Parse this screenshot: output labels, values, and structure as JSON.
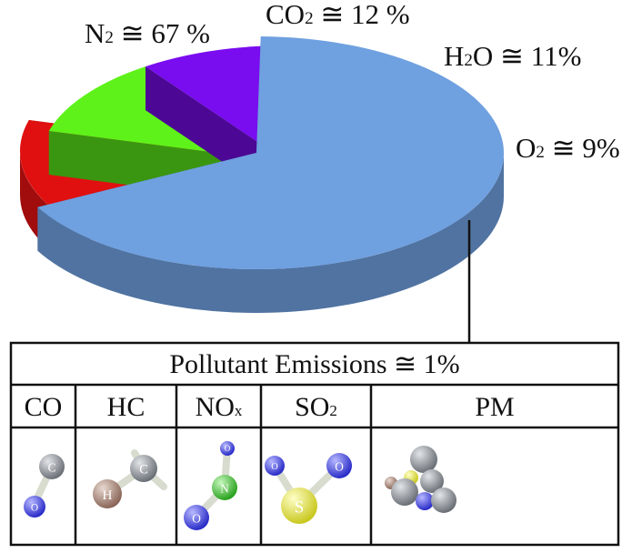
{
  "chart_data": {
    "type": "pie",
    "title": "",
    "slices": [
      {
        "base": "N",
        "sub": "2",
        "rest": " ≅ 67 %",
        "value": 67,
        "color": "#6fa0e0"
      },
      {
        "base": "CO",
        "sub": "2",
        "rest": " ≅ 12 %",
        "value": 12,
        "color": "#e01010"
      },
      {
        "base": "H",
        "sub": "2",
        "rest": "O ≅ 11%",
        "value": 11,
        "color": "#5ef21a"
      },
      {
        "base": "O",
        "sub": "2",
        "rest": " ≅ 9%",
        "value": 9,
        "color": "#7a0cf0"
      },
      {
        "base": "",
        "sub": "",
        "rest": "",
        "value": 1,
        "color": "#dcdc14"
      }
    ],
    "exploded": [
      "CO2 ≅ 12 %",
      "H2O ≅ 11%",
      "O2 ≅ 9%",
      "Pollutant Emissions ≅ 1%"
    ],
    "legend": "none"
  },
  "table": {
    "title": "Pollutant Emissions ≅ 1%",
    "columns": [
      {
        "base": "CO",
        "sub": "",
        "icon": "carbon-monoxide-molecule-icon",
        "atoms": [
          "C",
          "O"
        ]
      },
      {
        "base": "HC",
        "sub": "",
        "icon": "hydrocarbon-molecule-icon",
        "atoms": [
          "H",
          "C"
        ]
      },
      {
        "base": "NO",
        "sub": "x",
        "icon": "nitrogen-oxide-molecule-icon",
        "atoms": [
          "O",
          "N",
          "O"
        ]
      },
      {
        "base": "SO",
        "sub": "2",
        "icon": "sulfur-dioxide-molecule-icon",
        "atoms": [
          "O",
          "O",
          "S"
        ]
      },
      {
        "base": "PM",
        "sub": "",
        "icon": "particulate-matter-icon",
        "atoms": []
      }
    ]
  },
  "colors": {
    "carbon": "#8a8f95",
    "oxygen": "#4a4ce0",
    "nitrogen": "#4ccb3c",
    "hydrogen": "#a8877a",
    "sulfur": "#e8e84a",
    "frame": "#111111"
  }
}
